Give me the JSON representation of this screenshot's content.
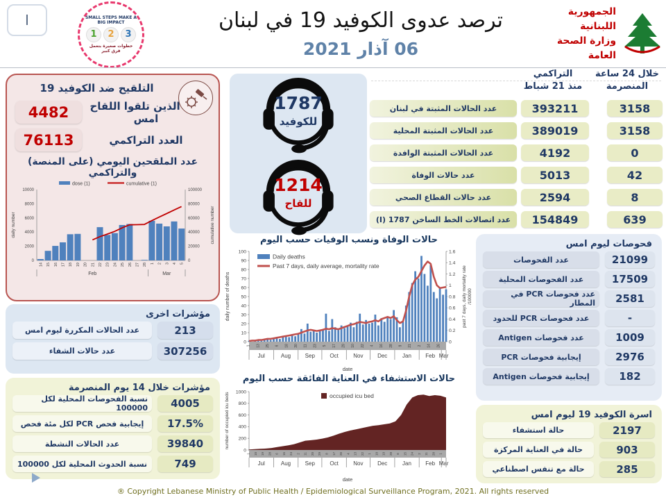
{
  "colors": {
    "navy": "#1F3864",
    "red": "#C00000",
    "steel_blue": "#4F81BD",
    "brick": "#C0504D",
    "maroon": "#632423",
    "date_blue": "#5F82A8"
  },
  "header": {
    "play_button": "I",
    "campaign_logo": {
      "top": "SMALL STEPS MAKE A BIG IMPACT",
      "steps": [
        "1",
        "2",
        "3"
      ],
      "bottom": "خطوات صغيرة بتعمل فرق كبير"
    },
    "title": "ترصد عدوى الكوفيد 19 في لبنان",
    "date": "06 آذار 2021",
    "moph_logo": {
      "line1": "الجمهورية اللبنانية",
      "line2": "وزارة الصحة العامة"
    }
  },
  "vaccination": {
    "title": "التلقيح ضد الكوفيد 19",
    "rows": [
      {
        "value": "4482",
        "label": "عدد الذين تلقوا اللقاح امس"
      },
      {
        "value": "76113",
        "label": "العدد التراكمي"
      }
    ]
  },
  "hotlines": [
    {
      "number": "1787",
      "label": "للكوفيد"
    },
    {
      "number": "1214",
      "label": "للقاح"
    }
  ],
  "stats_table": {
    "header_24h_line1": "خلال 24 ساعة",
    "header_24h_line2": "المنصرمة",
    "header_cum_line1": "التراكمي",
    "header_cum_line2": "منذ 21 شباط",
    "rows": [
      {
        "label": "عدد الحالات المثبتة في لبنان",
        "cumulative": "393211",
        "last24h": "3158"
      },
      {
        "label": "عدد الحالات المثبتة المحلية",
        "cumulative": "389019",
        "last24h": "3158"
      },
      {
        "label": "عدد الحالات المثبتة الوافدة",
        "cumulative": "4192",
        "last24h": "0"
      },
      {
        "label": "عدد حالات الوفاة",
        "cumulative": "5013",
        "last24h": "42"
      },
      {
        "label": "عدد حالات القطاع الصحي",
        "cumulative": "2594",
        "last24h": "8"
      },
      {
        "label": "عدد اتصالات الخط الساخن 1787 (I)",
        "cumulative": "154849",
        "last24h": "639"
      }
    ]
  },
  "other_indicators": {
    "title": "مؤشرات اخرى",
    "rows": [
      {
        "label": "عدد الحالات المكررة  ليوم امس",
        "value": "213"
      },
      {
        "label": "عدد حالات الشفاء",
        "value": "307256"
      }
    ]
  },
  "two_week_indicators": {
    "title": "مؤشرات خلال 14 يوم المنصرمة",
    "rows": [
      {
        "label": "نسبة الفحوصات المحلية لكل 100000",
        "value": "4005"
      },
      {
        "label": "إيجابية فحص PCR لكل مئة فحص",
        "value": "17.5%"
      },
      {
        "label": "عدد الحالات النشطة",
        "value": "39840"
      },
      {
        "label": "نسبة الحدوث المحلية لكل 100000",
        "value": "749"
      }
    ]
  },
  "tests_yesterday": {
    "title": "فحوصات ليوم امس",
    "rows": [
      {
        "label": "عدد الفحوصات",
        "value": "21099"
      },
      {
        "label": "عدد الفحوصات المحلية",
        "value": "17509"
      },
      {
        "label": "عدد فحوصات PCR في المطار",
        "value": "2581"
      },
      {
        "label": "عدد فحوصات PCR للحدود",
        "value": "-"
      },
      {
        "label": "عدد فحوصات Antigen",
        "value": "1009"
      },
      {
        "label": "إيجابية فحوصات PCR",
        "value": "2976"
      },
      {
        "label": "إيجابية فحوصات Antigen",
        "value": "182"
      }
    ]
  },
  "covid_beds": {
    "title": "اسرة الكوفيد 19 ليوم امس",
    "rows": [
      {
        "label": "حالة استشفاء",
        "value": "2197"
      },
      {
        "label": "حالة في العناية المركزة",
        "value": "903"
      },
      {
        "label": "حالة مع تنفس اصطناعي",
        "value": "285"
      }
    ]
  },
  "footer": {
    "copyright": "® Copyright Lebanese Ministry of Public Health / Epidemiological Surveillance Program, 2021. All rights reserved"
  },
  "chart_data": [
    {
      "id": "vaccination",
      "type": "bar+line",
      "title": "عدد الملقحين اليومي (على المنصة) والتراكمي",
      "legend": [
        "dose (1)",
        "cumulative (1)"
      ],
      "ylabel_left": "daily number",
      "ylabel_right": "cumulative number",
      "ylim_left": [
        0,
        10000
      ],
      "ylim_right": [
        0,
        100000
      ],
      "categories": [
        "14",
        "15",
        "16",
        "17",
        "18",
        "19",
        "20",
        "21",
        "22",
        "23",
        "24",
        "25",
        "26",
        "27",
        "28",
        "1",
        "2",
        "3",
        "4",
        "5"
      ],
      "month_groups": [
        {
          "label": "Feb",
          "span": 15
        },
        {
          "label": "Mar",
          "span": 5
        }
      ],
      "bars": [
        200,
        1350,
        2050,
        2550,
        3700,
        3750,
        0,
        0,
        4700,
        3600,
        3850,
        5000,
        5150,
        0,
        80,
        5600,
        5200,
        4800,
        5500,
        4500
      ],
      "line": [
        null,
        null,
        null,
        null,
        null,
        null,
        null,
        29000,
        33500,
        37200,
        41000,
        46000,
        50300,
        50500,
        50800,
        56200,
        61200,
        66200,
        71200,
        76113
      ],
      "bar_color": "#4F81BD",
      "line_color": "#C00000"
    },
    {
      "id": "daily_deaths",
      "type": "bar+line",
      "title": "حالات الوفاة ونسب الوفيات حسب اليوم",
      "legend": [
        "Daily deaths",
        "Past 7 days, daily average, mortality rate"
      ],
      "ylabel_left": "daily number of deaths",
      "ylabel_right": "past 7 days, daily mortality rate",
      "ylabel_right2": "/100000",
      "xlabel": "date",
      "ylim_left": [
        0,
        100
      ],
      "ylim_right": [
        0,
        1.6
      ],
      "months": [
        "Jul",
        "Aug",
        "Sep",
        "Oct",
        "Nov",
        "Dec",
        "Jan",
        "Feb",
        "Mar"
      ],
      "month_days": [
        31,
        31,
        30,
        31,
        30,
        31,
        31,
        28,
        6
      ],
      "x_ticks": [
        "1",
        "13",
        "25",
        "6",
        "18",
        "30",
        "11",
        "23",
        "5",
        "17",
        "29",
        "10",
        "22",
        "4",
        "16",
        "28",
        "9",
        "21",
        "2",
        "14",
        "26"
      ],
      "deaths": [
        1,
        0,
        1,
        2,
        1,
        2,
        3,
        2,
        3,
        4,
        3,
        5,
        6,
        5,
        7,
        6,
        8,
        14,
        9,
        20,
        11,
        13,
        10,
        12,
        14,
        31,
        12,
        25,
        16,
        13,
        18,
        15,
        17,
        21,
        16,
        22,
        31,
        19,
        24,
        20,
        21,
        30,
        18,
        26,
        22,
        28,
        25,
        35,
        27,
        16,
        22,
        40,
        55,
        65,
        78,
        70,
        95,
        75,
        62,
        85,
        55,
        48,
        60,
        52,
        58
      ],
      "rate": [
        0.01,
        0.02,
        0.02,
        0.03,
        0.03,
        0.04,
        0.05,
        0.05,
        0.06,
        0.07,
        0.08,
        0.09,
        0.1,
        0.11,
        0.12,
        0.13,
        0.14,
        0.16,
        0.18,
        0.2,
        0.21,
        0.2,
        0.19,
        0.2,
        0.21,
        0.23,
        0.22,
        0.24,
        0.23,
        0.22,
        0.24,
        0.26,
        0.28,
        0.3,
        0.31,
        0.33,
        0.35,
        0.34,
        0.33,
        0.35,
        0.36,
        0.38,
        0.36,
        0.4,
        0.42,
        0.44,
        0.42,
        0.45,
        0.38,
        0.33,
        0.36,
        0.55,
        0.8,
        1.0,
        1.1,
        1.15,
        1.25,
        1.35,
        1.42,
        1.38,
        1.15,
        1.0,
        0.95,
        0.96,
        0.97
      ],
      "bar_color": "#4F81BD",
      "line_color": "#C0504D"
    },
    {
      "id": "icu",
      "type": "area",
      "title": "حالات الاستشفاء في العناية الفائقة حسب اليوم",
      "legend": [
        "occupied icu bed"
      ],
      "ylabel": "number of occupied icu beds",
      "xlabel": "date",
      "ylim": [
        0,
        1000
      ],
      "months": [
        "Jul",
        "Aug",
        "Sep",
        "Oct",
        "Nov",
        "Dec",
        "Jan",
        "Feb",
        "Mar"
      ],
      "month_days": [
        31,
        31,
        30,
        31,
        30,
        31,
        31,
        28,
        6
      ],
      "x_ticks": [
        "1",
        "10",
        "19",
        "28",
        "6",
        "15",
        "24",
        "2",
        "11",
        "20",
        "29",
        "8",
        "17",
        "26",
        "4",
        "13",
        "22",
        "1",
        "10",
        "19",
        "28",
        "6",
        "15",
        "24",
        "2",
        "11",
        "20",
        "1"
      ],
      "values": [
        10,
        15,
        20,
        25,
        35,
        50,
        65,
        80,
        100,
        130,
        160,
        168,
        178,
        195,
        215,
        245,
        280,
        310,
        335,
        355,
        375,
        395,
        415,
        425,
        440,
        455,
        490,
        600,
        780,
        900,
        940,
        950,
        925,
        940,
        930,
        900
      ],
      "color": "#632423"
    }
  ]
}
